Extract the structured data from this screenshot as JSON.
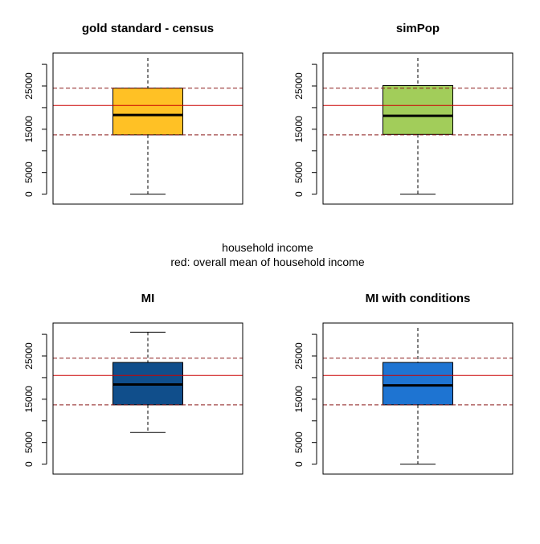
{
  "center_label": {
    "line1": "household income",
    "line2": "red: overall mean of household income"
  },
  "reference_lines": {
    "mean": 20500,
    "upper_dashed": 24500,
    "lower_dashed": 13700,
    "mean_color": "#cc0000",
    "dashed_color": "#8b1a1a"
  },
  "chart_data": [
    {
      "type": "boxplot",
      "title": "gold standard - census",
      "ylim": [
        -1000,
        31500
      ],
      "yticks": [
        0,
        5000,
        15000,
        25000
      ],
      "grid": false,
      "box": {
        "whisker_low": 0,
        "q1": 13700,
        "median": 18300,
        "q3": 24500,
        "whisker_high": 31500,
        "whisker_high_capped": false,
        "color": "#ffc125"
      }
    },
    {
      "type": "boxplot",
      "title": "simPop",
      "ylim": [
        -1000,
        31500
      ],
      "yticks": [
        0,
        5000,
        15000,
        25000
      ],
      "grid": false,
      "box": {
        "whisker_low": 0,
        "q1": 13800,
        "median": 18100,
        "q3": 25100,
        "whisker_high": 31500,
        "whisker_high_capped": false,
        "color": "#a2cd5a"
      }
    },
    {
      "type": "boxplot",
      "title": "MI",
      "ylim": [
        -1000,
        31500
      ],
      "yticks": [
        0,
        5000,
        15000,
        25000
      ],
      "grid": false,
      "box": {
        "whisker_low": 7300,
        "q1": 13700,
        "median": 18400,
        "q3": 23500,
        "whisker_high": 30500,
        "whisker_high_capped": true,
        "color": "#104e8b"
      }
    },
    {
      "type": "boxplot",
      "title": "MI with conditions",
      "ylim": [
        -1000,
        31500
      ],
      "yticks": [
        0,
        5000,
        15000,
        25000
      ],
      "grid": false,
      "box": {
        "whisker_low": 0,
        "q1": 13700,
        "median": 18200,
        "q3": 23500,
        "whisker_high": 31500,
        "whisker_high_capped": false,
        "color": "#1e74d2"
      }
    }
  ]
}
